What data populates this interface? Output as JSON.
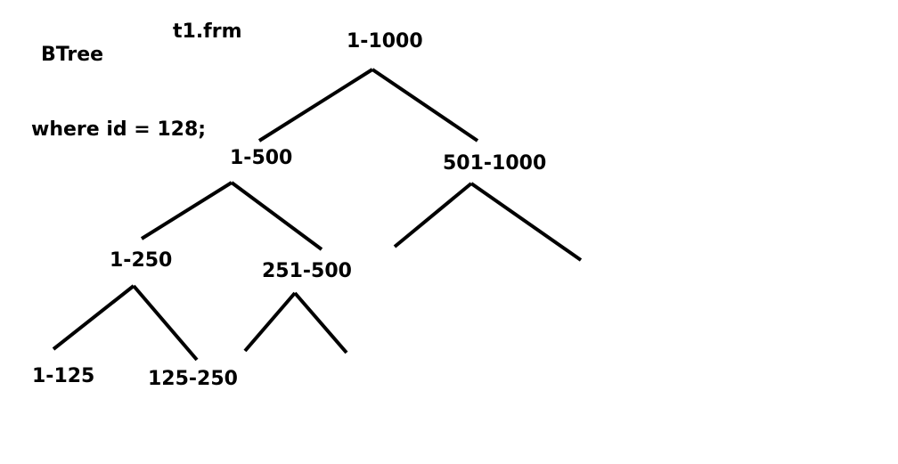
{
  "header": {
    "file_name": "t1.frm",
    "structure": "BTree",
    "query": "where id = 128;"
  },
  "tree": {
    "root": "1-1000",
    "left_child": "1-500",
    "right_child": "501-1000",
    "left_left": "1-250",
    "left_right": "251-500",
    "leaf_a": "1-125",
    "leaf_b": "125-250"
  },
  "colors": {
    "ink": "#000000",
    "background": "#ffffff"
  }
}
